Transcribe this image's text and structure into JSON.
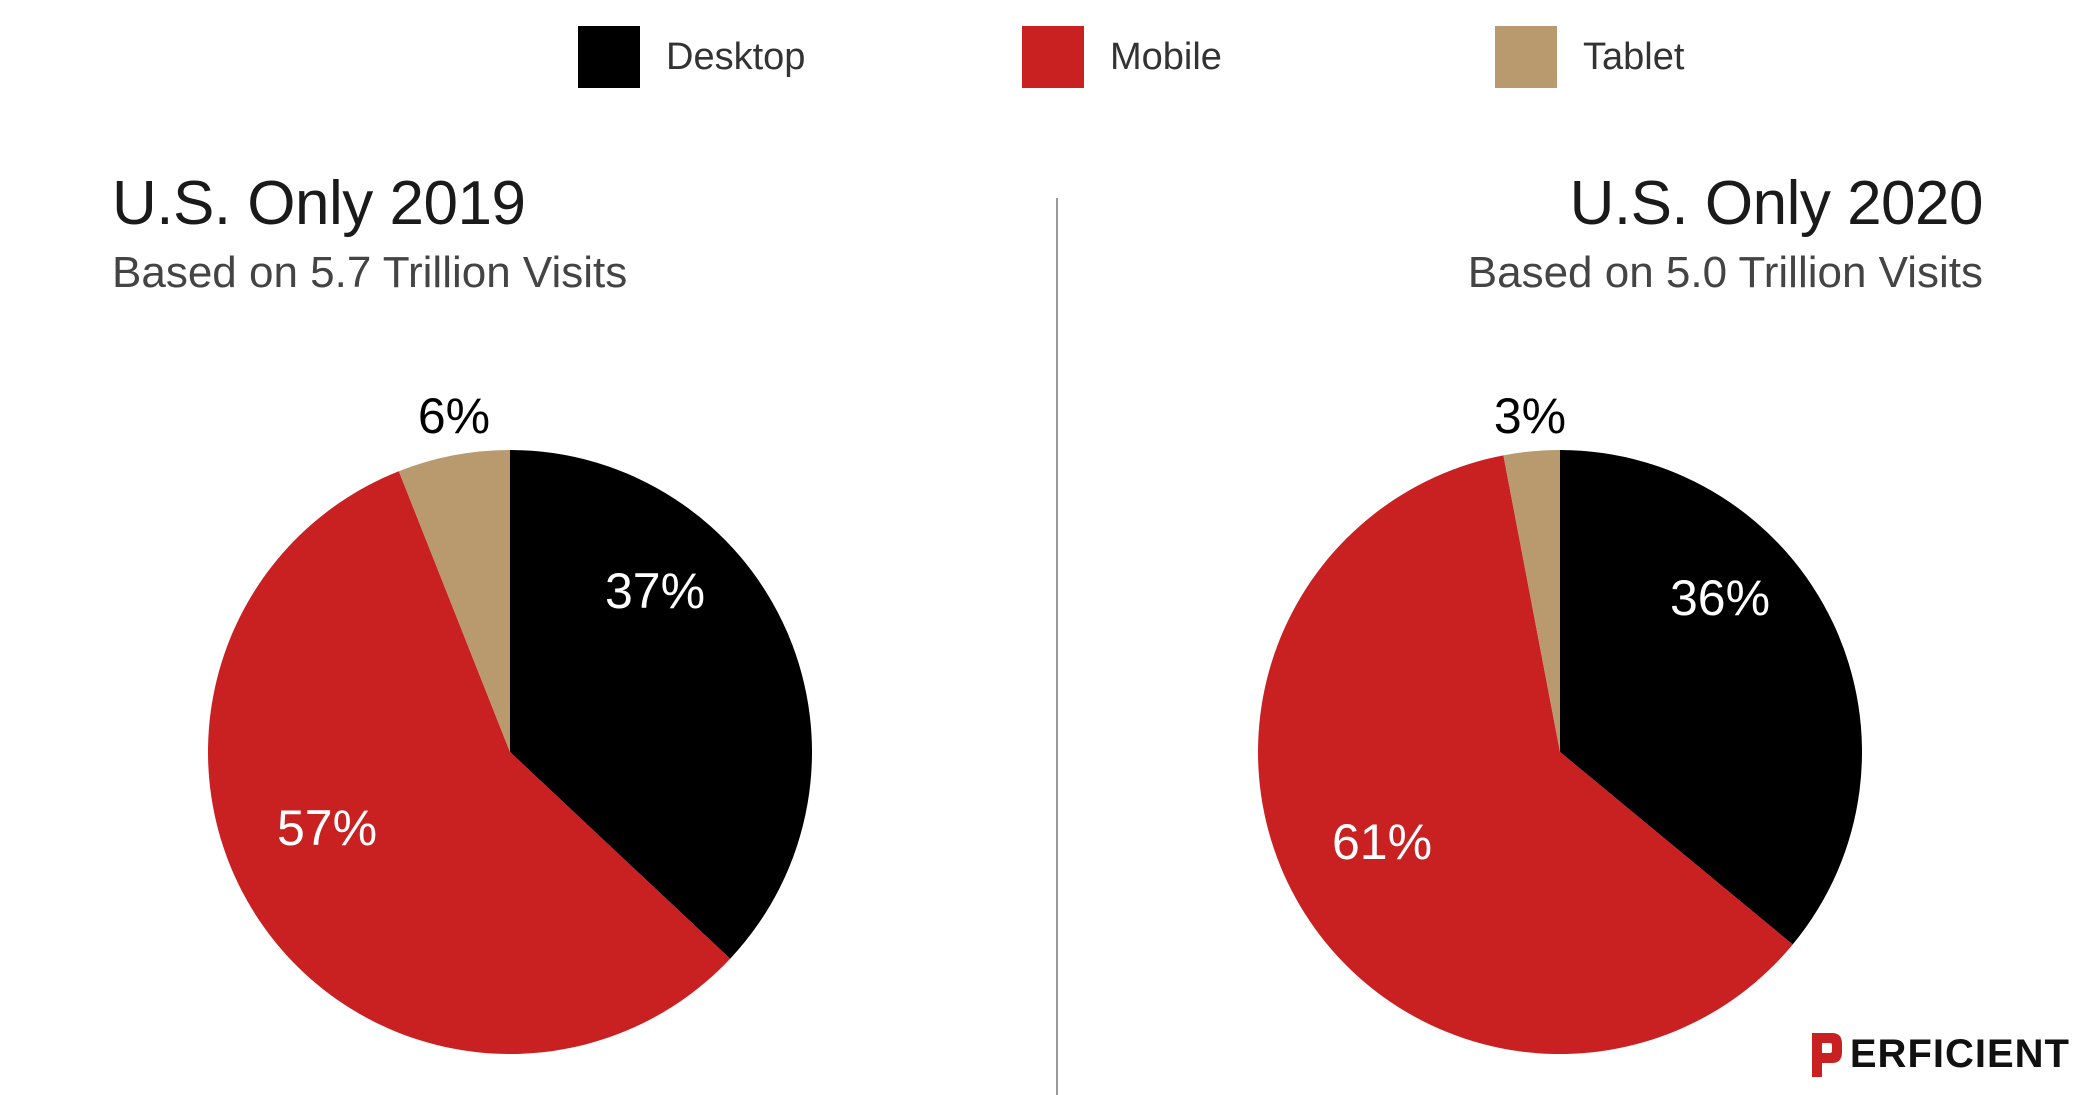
{
  "colors": {
    "desktop": "#000000",
    "mobile": "#c92022",
    "tablet": "#b89a6e"
  },
  "legend": [
    {
      "label": "Desktop",
      "color": "#000000"
    },
    {
      "label": "Mobile",
      "color": "#c92022"
    },
    {
      "label": "Tablet",
      "color": "#b89a6e"
    }
  ],
  "chart_data": [
    {
      "type": "pie",
      "title": "U.S. Only 2019",
      "subtitle": "Based on 5.7 Trillion Visits",
      "slices": [
        {
          "name": "Desktop",
          "value": 37,
          "label": "37%",
          "color": "#000000"
        },
        {
          "name": "Mobile",
          "value": 57,
          "label": "57%",
          "color": "#c92022"
        },
        {
          "name": "Tablet",
          "value": 6,
          "label": "6%",
          "color": "#b89a6e"
        }
      ]
    },
    {
      "type": "pie",
      "title": "U.S. Only 2020",
      "subtitle": "Based on 5.0 Trillion Visits",
      "slices": [
        {
          "name": "Desktop",
          "value": 36,
          "label": "36%",
          "color": "#000000"
        },
        {
          "name": "Mobile",
          "value": 61,
          "label": "61%",
          "color": "#c92022"
        },
        {
          "name": "Tablet",
          "value": 3,
          "label": "3%",
          "color": "#b89a6e"
        }
      ]
    }
  ],
  "logo": {
    "text": "ERFICIENT",
    "brand_color": "#c92022"
  }
}
